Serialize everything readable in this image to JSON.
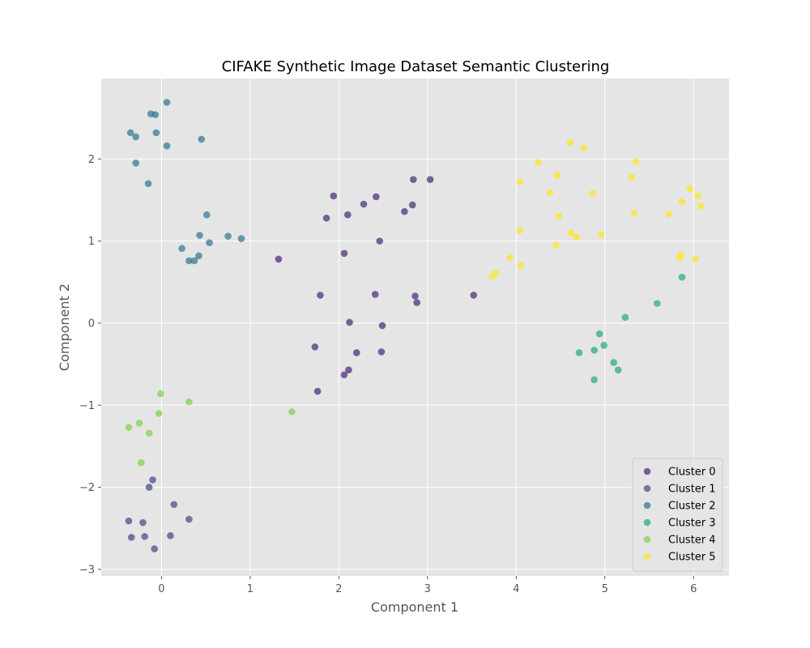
{
  "chart_data": {
    "type": "scatter",
    "title": "CIFAKE Synthetic Image Dataset Semantic Clustering",
    "xlabel": "Component 1",
    "ylabel": "Component 2",
    "xlim": [
      -0.68,
      6.4
    ],
    "ylim": [
      -3.08,
      2.98
    ],
    "xticks": [
      0,
      1,
      2,
      3,
      4,
      5,
      6
    ],
    "yticks": [
      -3,
      -2,
      -1,
      0,
      1,
      2
    ],
    "grid": true,
    "legend_position": "bottom-right",
    "series": [
      {
        "name": "Cluster 0",
        "color": "#482576",
        "points": [
          [
            1.32,
            0.78
          ],
          [
            1.79,
            0.34
          ],
          [
            1.73,
            -0.29
          ],
          [
            1.76,
            -0.83
          ],
          [
            1.86,
            1.28
          ],
          [
            1.94,
            1.55
          ],
          [
            2.06,
            0.85
          ],
          [
            2.06,
            -0.63
          ],
          [
            2.1,
            1.32
          ],
          [
            2.11,
            -0.57
          ],
          [
            2.12,
            0.01
          ],
          [
            2.2,
            -0.36
          ],
          [
            2.28,
            1.45
          ],
          [
            2.42,
            1.54
          ],
          [
            2.41,
            0.35
          ],
          [
            2.46,
            1.0
          ],
          [
            2.49,
            -0.03
          ],
          [
            2.48,
            -0.35
          ],
          [
            2.74,
            1.36
          ],
          [
            2.83,
            1.44
          ],
          [
            2.84,
            1.75
          ],
          [
            2.86,
            0.33
          ],
          [
            2.88,
            0.25
          ],
          [
            3.03,
            1.75
          ],
          [
            3.52,
            0.34
          ]
        ]
      },
      {
        "name": "Cluster 1",
        "color": "#414487",
        "points": [
          [
            -0.37,
            -2.41
          ],
          [
            -0.34,
            -2.61
          ],
          [
            -0.21,
            -2.43
          ],
          [
            -0.19,
            -2.6
          ],
          [
            -0.14,
            -2.0
          ],
          [
            -0.1,
            -1.91
          ],
          [
            -0.08,
            -2.75
          ],
          [
            0.1,
            -2.59
          ],
          [
            0.14,
            -2.21
          ],
          [
            0.31,
            -2.39
          ]
        ]
      },
      {
        "name": "Cluster 2",
        "color": "#2a788e",
        "points": [
          [
            -0.35,
            2.32
          ],
          [
            -0.29,
            2.27
          ],
          [
            -0.29,
            1.95
          ],
          [
            -0.15,
            1.7
          ],
          [
            -0.12,
            2.55
          ],
          [
            -0.07,
            2.54
          ],
          [
            -0.06,
            2.32
          ],
          [
            0.06,
            2.69
          ],
          [
            0.06,
            2.16
          ],
          [
            0.23,
            0.91
          ],
          [
            0.31,
            0.76
          ],
          [
            0.37,
            0.76
          ],
          [
            0.42,
            0.82
          ],
          [
            0.43,
            1.07
          ],
          [
            0.45,
            2.24
          ],
          [
            0.51,
            1.32
          ],
          [
            0.54,
            0.98
          ],
          [
            0.75,
            1.06
          ],
          [
            0.9,
            1.03
          ]
        ]
      },
      {
        "name": "Cluster 3",
        "color": "#22a884",
        "points": [
          [
            4.71,
            -0.36
          ],
          [
            4.88,
            -0.33
          ],
          [
            4.88,
            -0.69
          ],
          [
            4.94,
            -0.13
          ],
          [
            4.99,
            -0.27
          ],
          [
            5.1,
            -0.48
          ],
          [
            5.15,
            -0.57
          ],
          [
            5.23,
            0.07
          ],
          [
            5.59,
            0.24
          ],
          [
            5.87,
            0.56
          ]
        ]
      },
      {
        "name": "Cluster 4",
        "color": "#7ad151",
        "points": [
          [
            -0.37,
            -1.27
          ],
          [
            -0.25,
            -1.22
          ],
          [
            -0.23,
            -1.7
          ],
          [
            -0.14,
            -1.34
          ],
          [
            -0.03,
            -1.1
          ],
          [
            -0.01,
            -0.86
          ],
          [
            0.31,
            -0.96
          ],
          [
            1.47,
            -1.08
          ]
        ]
      },
      {
        "name": "Cluster 5",
        "color": "#fde725",
        "points": [
          [
            3.73,
            0.57
          ],
          [
            3.77,
            0.61
          ],
          [
            3.93,
            0.8
          ],
          [
            4.04,
            1.72
          ],
          [
            4.04,
            1.13
          ],
          [
            4.05,
            0.7
          ],
          [
            4.25,
            1.96
          ],
          [
            4.38,
            1.59
          ],
          [
            4.45,
            0.95
          ],
          [
            4.46,
            1.8
          ],
          [
            4.48,
            1.3
          ],
          [
            4.61,
            2.2
          ],
          [
            4.62,
            1.1
          ],
          [
            4.68,
            1.05
          ],
          [
            4.76,
            2.13
          ],
          [
            4.86,
            1.58
          ],
          [
            4.96,
            1.08
          ],
          [
            5.3,
            1.78
          ],
          [
            5.33,
            1.34
          ],
          [
            5.35,
            1.97
          ],
          [
            5.72,
            1.33
          ],
          [
            5.84,
            0.8
          ],
          [
            5.86,
            0.83
          ],
          [
            5.87,
            1.48
          ],
          [
            5.96,
            1.64
          ],
          [
            6.02,
            0.78
          ],
          [
            6.05,
            1.55
          ],
          [
            6.08,
            1.43
          ]
        ]
      }
    ]
  }
}
